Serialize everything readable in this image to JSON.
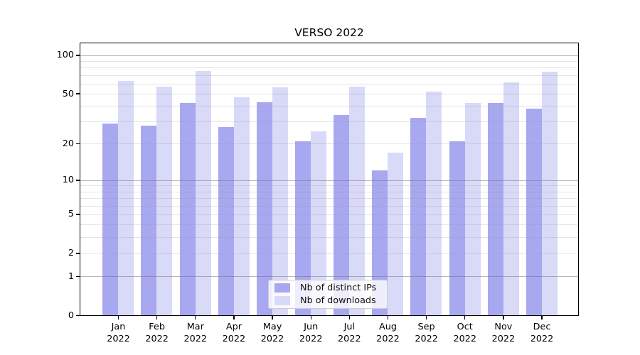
{
  "chart_data": {
    "type": "bar",
    "title": "VERSO 2022",
    "categories": [
      "Jan 2022",
      "Feb 2022",
      "Mar 2022",
      "Apr 2022",
      "May 2022",
      "Jun 2022",
      "Jul 2022",
      "Aug 2022",
      "Sep 2022",
      "Oct 2022",
      "Nov 2022",
      "Dec 2022"
    ],
    "series": [
      {
        "name": "Nb of distinct IPs",
        "color": "#a8a8f0",
        "values": [
          29,
          28,
          42,
          27,
          43,
          21,
          34,
          12,
          32,
          21,
          42,
          38
        ]
      },
      {
        "name": "Nb of downloads",
        "color": "#d9d9f8",
        "values": [
          63,
          57,
          75,
          47,
          56,
          25,
          57,
          17,
          52,
          42,
          61,
          74
        ]
      }
    ],
    "yscale": "log1p",
    "ylim": [
      0,
      122
    ],
    "ytick_labels": [
      0,
      1,
      2,
      5,
      10,
      20,
      50,
      100
    ],
    "grid_major": [
      1,
      10,
      100
    ],
    "grid_minor": [
      2,
      3,
      4,
      5,
      6,
      7,
      8,
      9,
      20,
      30,
      40,
      50,
      60,
      70,
      80,
      90
    ],
    "legend_position": "lower center",
    "grid": "on"
  },
  "colors": {
    "axis": "#000000",
    "text": "#000000",
    "grid_major_apparent": "#b6b6b6",
    "grid_minor_apparent": "#e4e4e4",
    "legend_border": "#cccccc",
    "background": "#ffffff"
  }
}
